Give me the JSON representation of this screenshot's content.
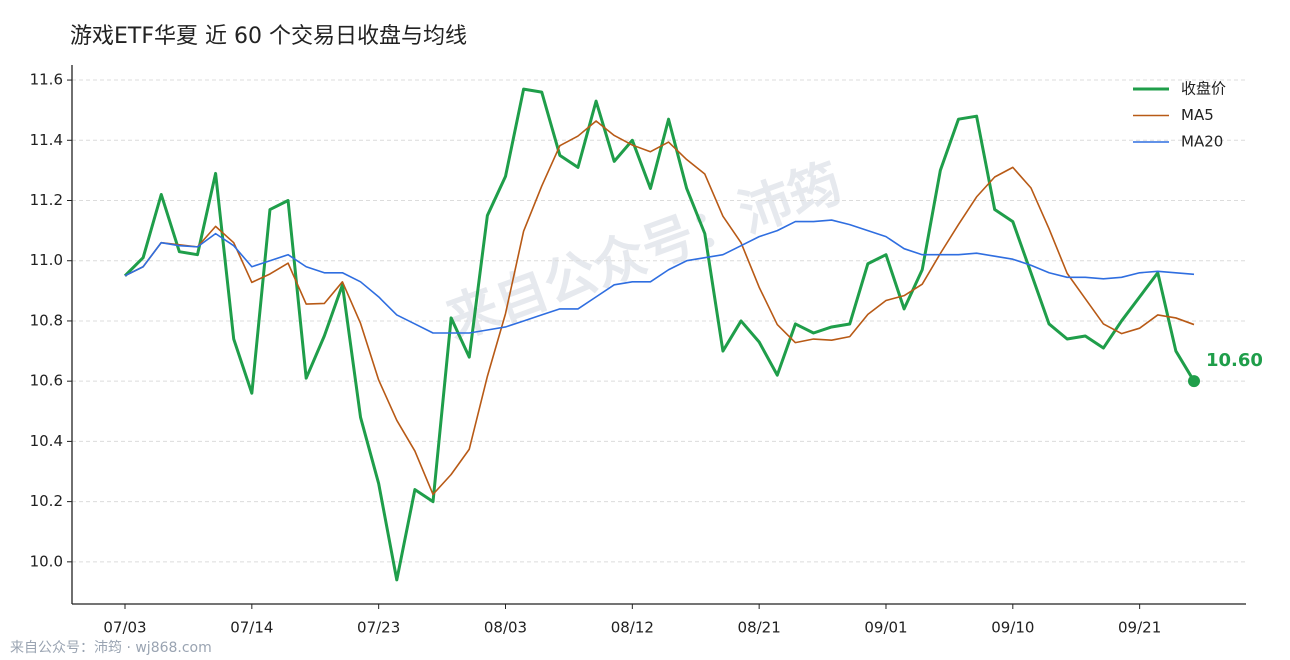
{
  "chart_data": {
    "type": "line",
    "title": "游戏ETF华夏 近 60 个交易日收盘与均线",
    "watermark": "来自公众号：沛筠",
    "footer": "来自公众号：沛筠 · wj868.com",
    "categories": [
      "07/03",
      null,
      null,
      null,
      null,
      null,
      null,
      "07/14",
      null,
      null,
      null,
      null,
      null,
      null,
      "07/23",
      null,
      null,
      null,
      null,
      null,
      null,
      "08/03",
      null,
      null,
      null,
      null,
      null,
      null,
      "08/12",
      null,
      null,
      null,
      null,
      null,
      null,
      "08/21",
      null,
      null,
      null,
      null,
      null,
      null,
      "09/01",
      null,
      null,
      null,
      null,
      null,
      null,
      "09/10",
      null,
      null,
      null,
      null,
      null,
      null,
      "09/21",
      null,
      null,
      null
    ],
    "ylim": [
      9.86,
      11.65
    ],
    "yticks": [
      {
        "value": 10,
        "label": "10.0"
      },
      10.2,
      10.4,
      10.6,
      10.8,
      {
        "value": 11,
        "label": "11.0"
      },
      11.2,
      11.4,
      11.6
    ],
    "grid": true,
    "legend": "upper right",
    "series": [
      {
        "name": "收盘价",
        "color": "#1f9e4a",
        "width": 3,
        "values": [
          10.95,
          11.01,
          11.22,
          11.03,
          11.02,
          11.29,
          10.74,
          10.56,
          11.17,
          11.2,
          10.61,
          10.75,
          10.92,
          10.48,
          10.26,
          9.94,
          10.24,
          10.2,
          10.81,
          10.68,
          11.15,
          11.28,
          11.57,
          11.56,
          11.35,
          11.31,
          11.53,
          11.33,
          11.4,
          11.24,
          11.47,
          11.24,
          11.09,
          10.7,
          10.8,
          10.73,
          10.62,
          10.79,
          10.76,
          10.78,
          10.79,
          10.99,
          11.02,
          10.84,
          10.97,
          11.3,
          11.47,
          11.48,
          11.17,
          11.13,
          10.96,
          10.79,
          10.74,
          10.75,
          10.71,
          10.8,
          10.88,
          10.96,
          10.7,
          10.6
        ],
        "value_labels": [
          null,
          null,
          null,
          null,
          null,
          null,
          null,
          null,
          null,
          null,
          null,
          null,
          null,
          null,
          null,
          null,
          null,
          null,
          null,
          null,
          null,
          null,
          null,
          null,
          null,
          null,
          null,
          null,
          null,
          null,
          null,
          null,
          null,
          null,
          null,
          null,
          null,
          null,
          null,
          null,
          null,
          null,
          null,
          null,
          null,
          null,
          null,
          null,
          null,
          null,
          null,
          null,
          null,
          null,
          null,
          null,
          null,
          null,
          null,
          "10.60"
        ]
      },
      {
        "name": "MA5",
        "color": "#b85a16",
        "width": 1.6,
        "values": [
          10.95,
          10.98,
          11.06,
          11.053,
          11.046,
          11.114,
          11.06,
          10.928,
          10.956,
          10.992,
          10.856,
          10.858,
          10.93,
          10.792,
          10.604,
          10.47,
          10.368,
          10.224,
          10.29,
          10.374,
          10.616,
          10.824,
          11.098,
          11.248,
          11.382,
          11.414,
          11.464,
          11.416,
          11.384,
          11.362,
          11.394,
          11.336,
          11.288,
          11.148,
          11.06,
          10.912,
          10.788,
          10.728,
          10.74,
          10.736,
          10.748,
          10.822,
          10.868,
          10.884,
          10.922,
          11.024,
          11.12,
          11.212,
          11.278,
          11.31,
          11.242,
          11.106,
          10.958,
          10.874,
          10.79,
          10.758,
          10.776,
          10.82,
          10.81,
          10.788
        ]
      },
      {
        "name": "MA20",
        "color": "#2f6ee0",
        "width": 1.6,
        "values": [
          10.95,
          10.98,
          11.06,
          11.05,
          11.046,
          11.09,
          11.05,
          10.98,
          11.0,
          11.02,
          10.98,
          10.96,
          10.96,
          10.93,
          10.88,
          10.82,
          10.79,
          10.76,
          10.76,
          10.76,
          10.77,
          10.78,
          10.8,
          10.82,
          10.84,
          10.84,
          10.88,
          10.92,
          10.93,
          10.93,
          10.97,
          11.0,
          11.01,
          11.02,
          11.05,
          11.08,
          11.1,
          11.13,
          11.13,
          11.135,
          11.12,
          11.1,
          11.08,
          11.04,
          11.02,
          11.02,
          11.02,
          11.025,
          11.015,
          11.005,
          10.985,
          10.96,
          10.945,
          10.945,
          10.94,
          10.945,
          10.96,
          10.965,
          10.96,
          10.955
        ]
      }
    ]
  }
}
